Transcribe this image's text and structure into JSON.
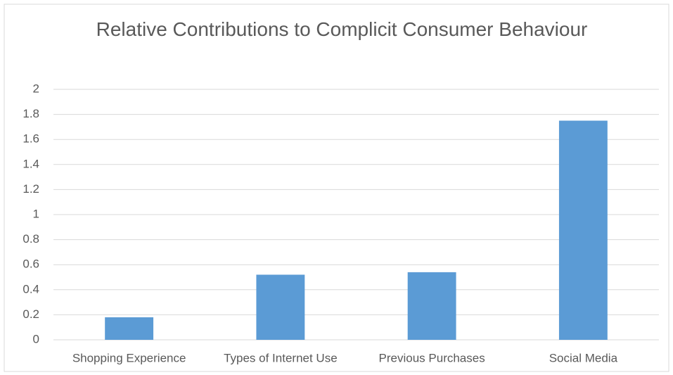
{
  "chart_data": {
    "type": "bar",
    "title": "Relative Contributions to Complicit Consumer Behaviour",
    "categories": [
      "Shopping Experience",
      "Types of Internet Use",
      "Previous Purchases",
      "Social Media"
    ],
    "values": [
      0.18,
      0.52,
      0.54,
      1.75
    ],
    "color": "#5b9bd5",
    "ylim": [
      0,
      2
    ],
    "yticks": [
      0,
      0.2,
      0.4,
      0.6,
      0.8,
      1,
      1.2,
      1.4,
      1.6,
      1.8,
      2
    ],
    "grid": true
  }
}
